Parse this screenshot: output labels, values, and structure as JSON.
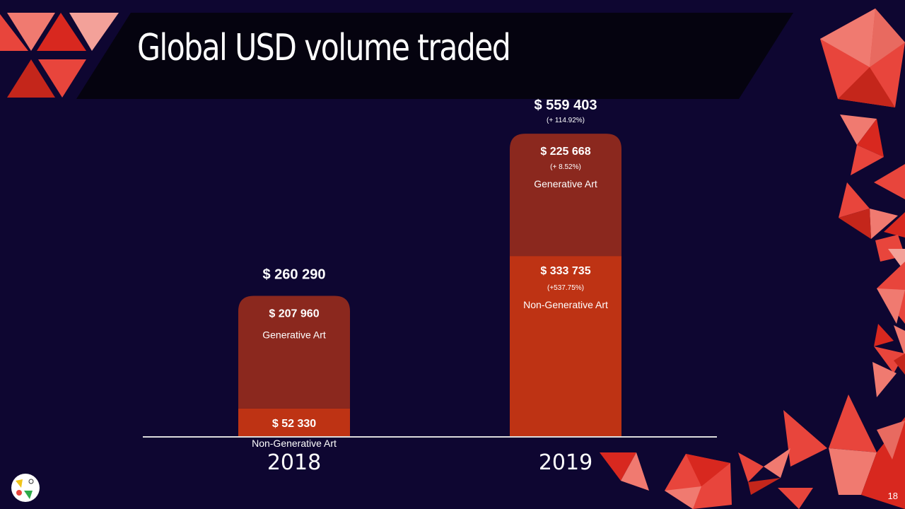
{
  "slide": {
    "title": "Global USD volume traded",
    "page_number": "18"
  },
  "colors": {
    "background": "#0e0631",
    "title_band": "#05030f",
    "generative": "#8b281e",
    "non_generative": "#be3314",
    "axis": "#dcdcdc",
    "accent_red": "#e8453c",
    "accent_pink": "#f08f86"
  },
  "chart_data": {
    "type": "bar",
    "stacked": true,
    "categories": [
      "2018",
      "2019"
    ],
    "series": [
      {
        "name": "Non-Generative Art",
        "values": [
          52330,
          333735
        ],
        "value_labels": [
          "$ 52 330",
          "$ 333  735"
        ],
        "change_labels": [
          "",
          "(+537.75%)"
        ]
      },
      {
        "name": "Generative Art",
        "values": [
          207960,
          225668
        ],
        "value_labels": [
          "$ 207 960",
          "$ 225  668"
        ],
        "change_labels": [
          "",
          "(+ 8.52%)"
        ]
      }
    ],
    "totals": [
      260290,
      559403
    ],
    "total_labels": [
      "$ 260  290",
      "$ 559 403"
    ],
    "total_change_labels": [
      "",
      "(+ 114.92%)"
    ],
    "ylim": [
      0,
      600000
    ],
    "grid": false,
    "legend": "none"
  }
}
